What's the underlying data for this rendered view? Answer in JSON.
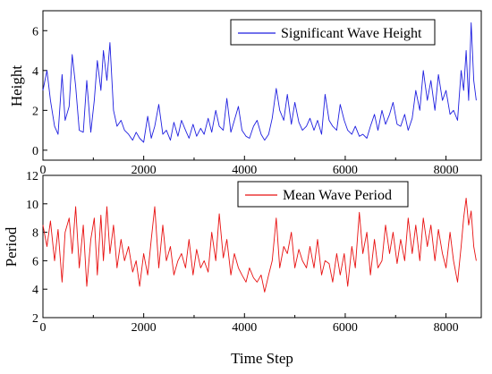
{
  "chart_data": [
    {
      "type": "line",
      "title": "",
      "xlabel": "",
      "ylabel": "Height",
      "xlim": [
        0,
        8700
      ],
      "ylim": [
        -0.5,
        7
      ],
      "xticks": [
        0,
        2000,
        4000,
        6000,
        8000
      ],
      "xtick_labels": [
        "0",
        "2000",
        "4000",
        "6000",
        "8000"
      ],
      "yticks": [
        0,
        2,
        4,
        6
      ],
      "ytick_labels": [
        "0",
        "2",
        "4",
        "6"
      ],
      "legend": "top-right",
      "grid": false,
      "color": "#1f1fe0",
      "series": [
        {
          "name": "Significant Wave Height",
          "x": [
            0,
            80,
            150,
            230,
            300,
            380,
            440,
            520,
            580,
            650,
            720,
            800,
            870,
            950,
            1020,
            1080,
            1150,
            1200,
            1270,
            1330,
            1400,
            1470,
            1550,
            1620,
            1700,
            1780,
            1850,
            1920,
            2000,
            2080,
            2150,
            2220,
            2300,
            2380,
            2450,
            2530,
            2600,
            2680,
            2750,
            2830,
            2900,
            2980,
            3050,
            3130,
            3200,
            3280,
            3350,
            3430,
            3500,
            3580,
            3650,
            3730,
            3800,
            3880,
            3950,
            4030,
            4100,
            4180,
            4250,
            4330,
            4400,
            4480,
            4550,
            4630,
            4700,
            4780,
            4850,
            4930,
            5000,
            5080,
            5150,
            5230,
            5300,
            5380,
            5450,
            5530,
            5600,
            5680,
            5750,
            5830,
            5900,
            5980,
            6050,
            6130,
            6200,
            6280,
            6350,
            6430,
            6500,
            6580,
            6650,
            6730,
            6800,
            6880,
            6950,
            7030,
            7100,
            7180,
            7250,
            7330,
            7400,
            7480,
            7550,
            7630,
            7700,
            7780,
            7850,
            7930,
            8000,
            8080,
            8150,
            8230,
            8300,
            8350,
            8400,
            8450,
            8500,
            8550,
            8600
          ],
          "values": [
            3.0,
            4.0,
            2.5,
            1.2,
            0.8,
            3.8,
            1.5,
            2.2,
            4.8,
            3.2,
            1.0,
            0.9,
            3.5,
            0.9,
            2.5,
            4.5,
            3.0,
            5.0,
            3.5,
            5.4,
            2.0,
            1.2,
            1.5,
            1.0,
            0.8,
            0.5,
            0.9,
            0.6,
            0.4,
            1.7,
            0.6,
            1.2,
            2.3,
            0.8,
            1.0,
            0.5,
            1.4,
            0.7,
            1.5,
            1.0,
            0.6,
            1.3,
            0.7,
            1.1,
            0.8,
            1.6,
            0.9,
            2.0,
            1.2,
            1.0,
            2.6,
            0.9,
            1.5,
            2.2,
            1.0,
            0.7,
            0.6,
            1.2,
            1.5,
            0.8,
            0.5,
            0.8,
            1.6,
            3.1,
            2.0,
            1.5,
            2.8,
            1.3,
            2.4,
            1.4,
            1.0,
            1.2,
            1.6,
            1.0,
            1.5,
            0.8,
            2.8,
            1.5,
            1.2,
            1.0,
            2.3,
            1.5,
            1.0,
            0.8,
            1.2,
            0.7,
            0.8,
            0.6,
            1.2,
            1.8,
            1.0,
            2.0,
            1.3,
            1.8,
            2.4,
            1.3,
            1.2,
            1.8,
            1.0,
            1.6,
            3.0,
            2.0,
            4.0,
            2.5,
            3.5,
            2.0,
            3.8,
            2.5,
            3.0,
            1.8,
            2.0,
            1.5,
            4.0,
            3.0,
            5.0,
            2.5,
            6.4,
            3.5,
            2.5
          ],
          "peak_note": ""
        }
      ]
    },
    {
      "type": "line",
      "title": "",
      "xlabel": "Time Step",
      "ylabel": "Period",
      "xlim": [
        0,
        8700
      ],
      "ylim": [
        2,
        12
      ],
      "xticks": [
        0,
        2000,
        4000,
        6000,
        8000
      ],
      "xtick_labels": [
        "0",
        "2000",
        "4000",
        "6000",
        "8000"
      ],
      "yticks": [
        2,
        4,
        6,
        8,
        10,
        12
      ],
      "ytick_labels": [
        "2",
        "4",
        "6",
        "8",
        "10",
        "12"
      ],
      "legend": "top-right",
      "grid": false,
      "color": "#e81010",
      "series": [
        {
          "name": "Mean Wave Period",
          "x": [
            0,
            80,
            150,
            230,
            300,
            380,
            440,
            520,
            580,
            650,
            720,
            800,
            870,
            950,
            1020,
            1080,
            1150,
            1200,
            1270,
            1330,
            1400,
            1470,
            1550,
            1620,
            1700,
            1780,
            1850,
            1920,
            2000,
            2080,
            2150,
            2220,
            2300,
            2380,
            2450,
            2530,
            2600,
            2680,
            2750,
            2830,
            2900,
            2980,
            3050,
            3130,
            3200,
            3280,
            3350,
            3430,
            3500,
            3580,
            3650,
            3730,
            3800,
            3880,
            3950,
            4030,
            4100,
            4180,
            4250,
            4330,
            4400,
            4480,
            4550,
            4630,
            4700,
            4780,
            4850,
            4930,
            5000,
            5080,
            5150,
            5230,
            5300,
            5380,
            5450,
            5530,
            5600,
            5680,
            5750,
            5830,
            5900,
            5980,
            6050,
            6130,
            6200,
            6280,
            6350,
            6430,
            6500,
            6580,
            6650,
            6730,
            6800,
            6880,
            6950,
            7030,
            7100,
            7180,
            7250,
            7330,
            7400,
            7480,
            7550,
            7630,
            7700,
            7780,
            7850,
            7930,
            8000,
            8080,
            8150,
            8230,
            8300,
            8350,
            8400,
            8450,
            8500,
            8550,
            8600
          ],
          "values": [
            8.5,
            7.0,
            8.8,
            6.0,
            8.2,
            4.5,
            8.0,
            9.0,
            6.5,
            9.8,
            5.5,
            8.5,
            4.2,
            7.5,
            9.0,
            5.0,
            9.2,
            6.0,
            9.8,
            6.5,
            8.5,
            5.5,
            7.5,
            6.0,
            7.0,
            5.2,
            6.0,
            4.2,
            6.5,
            5.0,
            7.5,
            9.8,
            5.5,
            8.5,
            6.0,
            7.0,
            5.0,
            6.0,
            6.5,
            5.5,
            7.5,
            5.0,
            6.8,
            5.5,
            6.0,
            5.2,
            8.0,
            6.0,
            9.3,
            6.2,
            7.5,
            5.0,
            6.5,
            5.5,
            5.0,
            4.5,
            5.5,
            4.8,
            4.5,
            5.0,
            3.8,
            5.0,
            6.0,
            9.0,
            5.5,
            7.0,
            6.5,
            8.0,
            5.5,
            6.8,
            6.0,
            5.5,
            7.0,
            5.5,
            7.5,
            5.0,
            6.0,
            5.8,
            4.5,
            6.5,
            5.0,
            6.5,
            4.2,
            7.0,
            5.5,
            9.4,
            6.5,
            8.0,
            5.0,
            7.5,
            5.5,
            6.0,
            8.5,
            6.5,
            8.0,
            5.8,
            7.5,
            6.0,
            9.0,
            6.5,
            8.5,
            6.0,
            9.0,
            7.0,
            8.5,
            6.0,
            8.2,
            6.5,
            5.5,
            8.0,
            6.0,
            4.5,
            7.0,
            9.0,
            10.4,
            8.5,
            9.5,
            7.0,
            6.0
          ],
          "peak_note": ""
        }
      ]
    }
  ]
}
